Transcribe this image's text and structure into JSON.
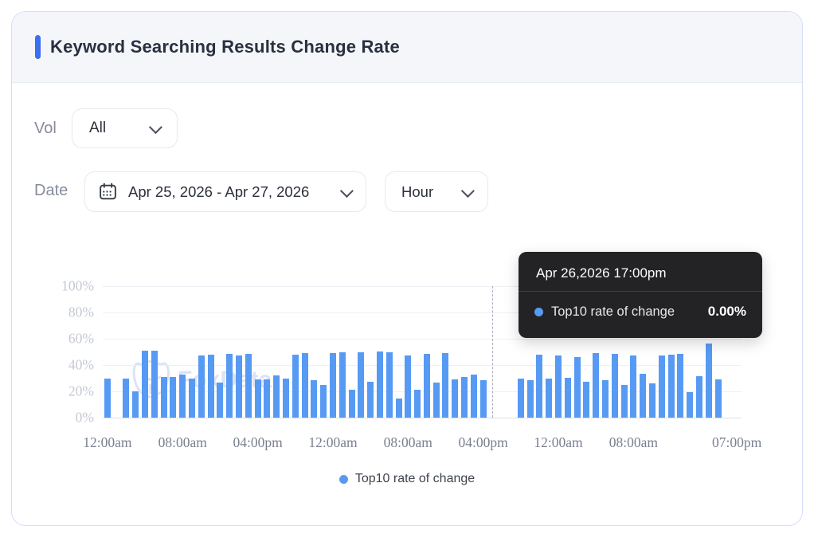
{
  "card": {
    "title": "Keyword Searching Results Change Rate"
  },
  "filters": {
    "vol_label": "Vol",
    "vol_value": "All",
    "date_label": "Date",
    "date_value": "Apr 25, 2026 - Apr 27, 2026",
    "granularity_value": "Hour"
  },
  "icons": {
    "vol_dropdown": "chevron-down-icon",
    "date_dropdown": "chevron-down-icon",
    "granularity_dropdown": "chevron-down-icon",
    "date_field": "calendar-icon",
    "legend_marker": "blue-dot",
    "tooltip_marker": "blue-dot",
    "watermark_logo": "fox-icon"
  },
  "colors": {
    "accent_blue": "#3a6ff2",
    "bar_blue": "#579af4",
    "tooltip_bg": "#101012",
    "header_bg": "#f4f6fa",
    "card_border": "#d3dffa"
  },
  "tooltip": {
    "title": "Apr 26,2026 17:00pm",
    "series_label": "Top10 rate of change",
    "value": "0.00%"
  },
  "legend": {
    "label": "Top10 rate of change"
  },
  "watermark": {
    "text": "FoxData"
  },
  "chart_data": {
    "type": "bar",
    "title": "Keyword Searching Results Change Rate",
    "series_name": "Top10 rate of change",
    "x_start": "Apr 25, 2026 12:00am",
    "x_end": "Apr 27, 2026 07:00pm",
    "x_interval": "1 hour",
    "n_points": 68,
    "values": [
      30,
      0,
      30,
      20,
      51,
      51,
      31,
      31,
      33,
      30,
      47,
      48,
      26.5,
      48.5,
      47,
      48.5,
      29,
      29,
      32,
      29.5,
      48,
      49,
      28.5,
      25,
      49,
      50,
      21.5,
      50,
      27,
      50.5,
      50,
      14.5,
      47.5,
      21,
      48.5,
      26.5,
      49,
      29,
      31,
      32.5,
      28.5,
      0,
      0,
      0,
      30,
      28.5,
      48,
      30,
      47.5,
      30.5,
      46,
      27.5,
      49,
      28.5,
      48.5,
      25,
      47,
      33.5,
      26,
      47.5,
      48,
      48.5,
      19.5,
      31.5,
      56.5,
      29,
      0,
      0
    ],
    "ylim": [
      0,
      100
    ],
    "y_ticks": [
      "0%",
      "20%",
      "40%",
      "60%",
      "80%",
      "100%"
    ],
    "x_tick_labels": [
      {
        "index": 0,
        "label": "12:00am"
      },
      {
        "index": 8,
        "label": "08:00am"
      },
      {
        "index": 16,
        "label": "04:00pm"
      },
      {
        "index": 24,
        "label": "12:00am"
      },
      {
        "index": 32,
        "label": "08:00am"
      },
      {
        "index": 40,
        "label": "04:00pm"
      },
      {
        "index": 48,
        "label": "12:00am"
      },
      {
        "index": 56,
        "label": "08:00am"
      },
      {
        "index": 67,
        "label": "07:00pm"
      }
    ],
    "grid": true,
    "legend_position": "bottom-center",
    "highlight": {
      "index": 41,
      "label": "Apr 26,2026 17:00pm",
      "value": "0.00%",
      "marker": "dashed-line"
    },
    "bar_color": "#579af4"
  }
}
